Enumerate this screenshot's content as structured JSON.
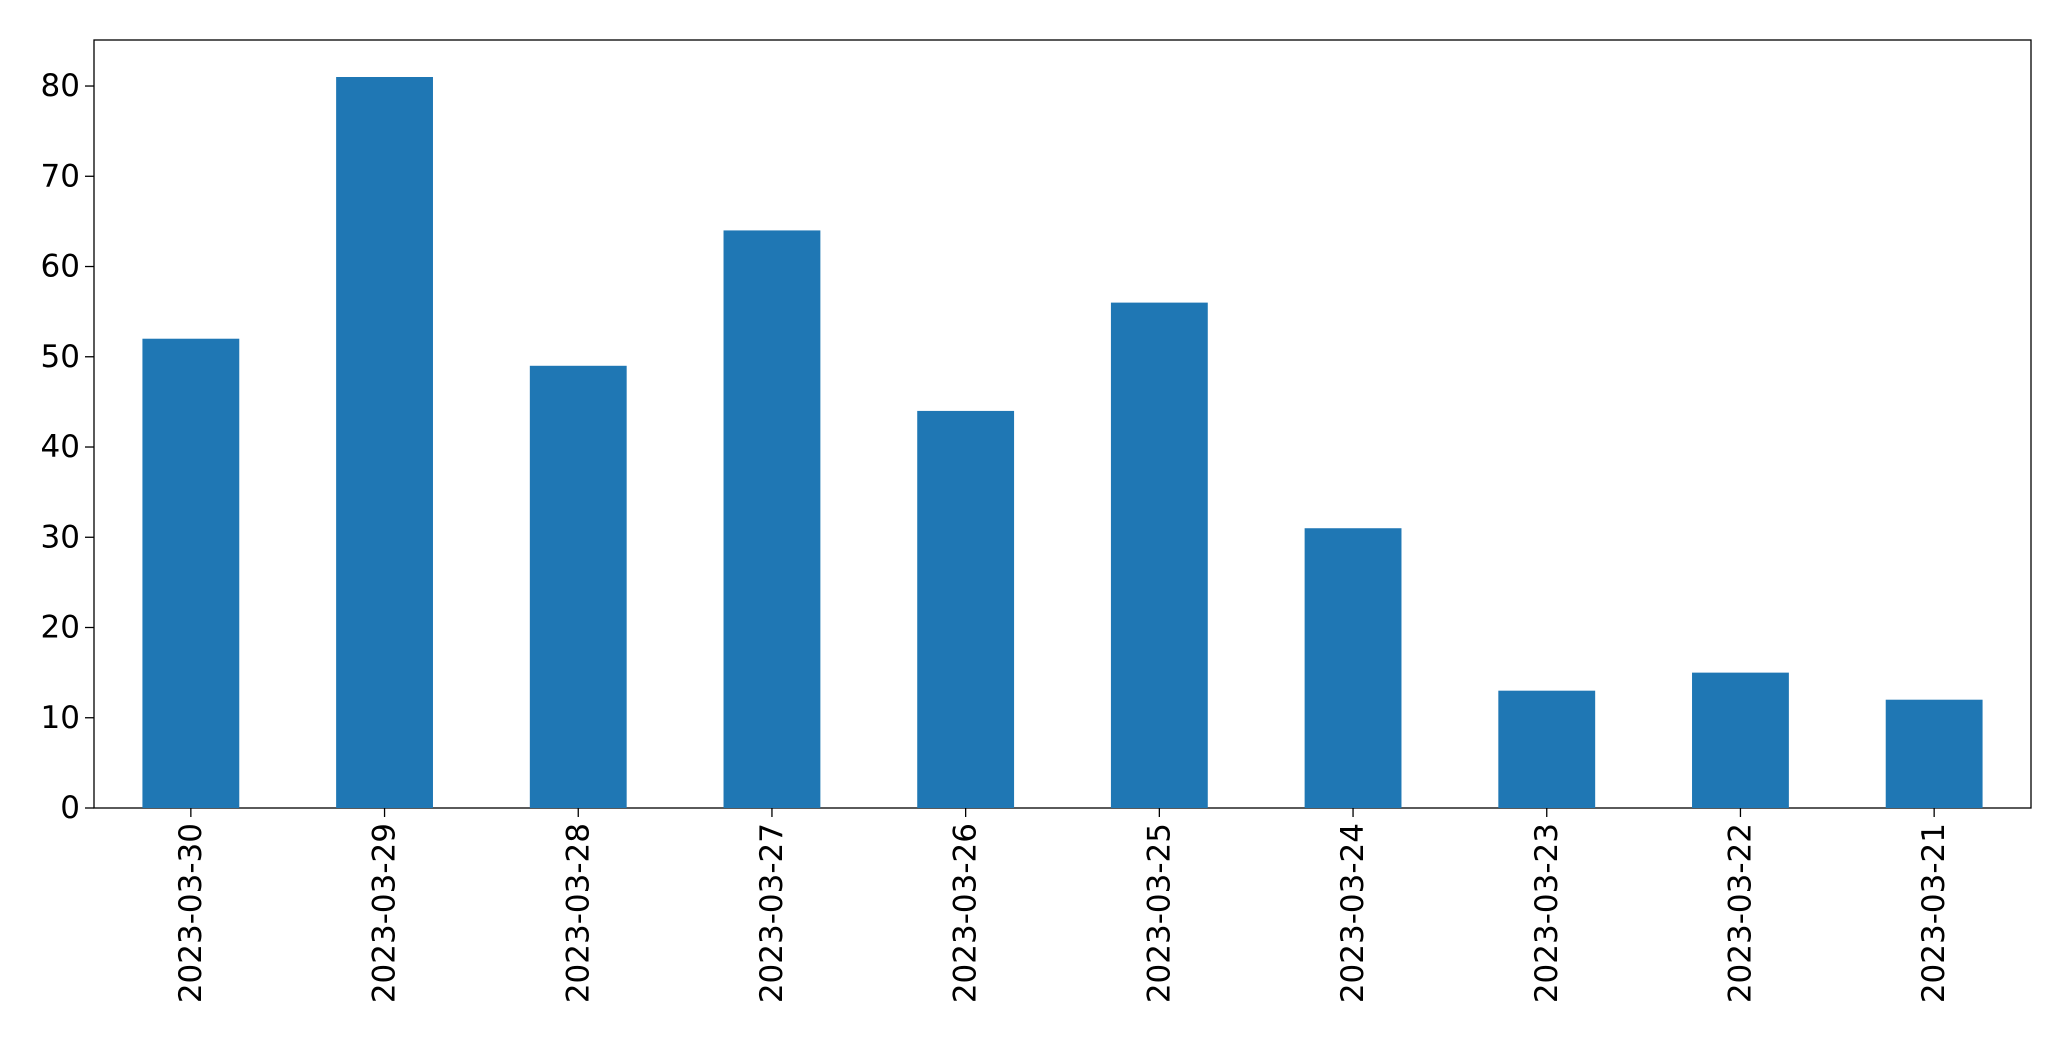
{
  "chart_data": {
    "type": "bar",
    "categories": [
      "2023-03-30",
      "2023-03-29",
      "2023-03-28",
      "2023-03-27",
      "2023-03-26",
      "2023-03-25",
      "2023-03-24",
      "2023-03-23",
      "2023-03-22",
      "2023-03-21"
    ],
    "values": [
      52,
      81,
      49,
      64,
      44,
      56,
      31,
      13,
      15,
      12
    ],
    "color": "#1f77b4",
    "ylim": [
      0,
      85.1
    ],
    "yticks": [
      0,
      10,
      20,
      30,
      40,
      50,
      60,
      70,
      80
    ],
    "grid": false
  }
}
